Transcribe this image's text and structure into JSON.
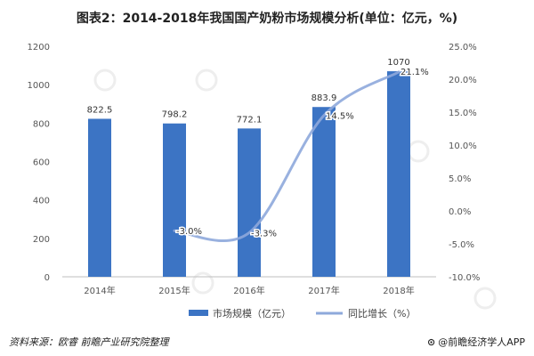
{
  "title": "图表2：2014-2018年我国国产奶粉市场规模分析(单位：亿元，%)",
  "source": "资料来源：欧睿 前瞻产业研究院整理",
  "credit": "@前瞻经济学人APP",
  "chart_data": {
    "type": "bar+line",
    "categories": [
      "2014年",
      "2015年",
      "2016年",
      "2017年",
      "2018年"
    ],
    "series": [
      {
        "name": "市场规模（亿元）",
        "type": "bar",
        "axis": "left",
        "color": "#3c74c4",
        "values": [
          822.5,
          798.2,
          772.1,
          883.9,
          1070
        ],
        "labels": [
          "822.5",
          "798.2",
          "772.1",
          "883.9",
          "1070"
        ]
      },
      {
        "name": "同比增长（%）",
        "type": "line",
        "axis": "right",
        "color": "#8ea9db",
        "values": [
          null,
          -3.0,
          -3.3,
          14.5,
          21.1
        ],
        "labels": [
          "",
          "-3.0%",
          "-3.3%",
          "14.5%",
          "21.1%"
        ]
      }
    ],
    "y_left": {
      "min": 0,
      "max": 1200,
      "step": 200,
      "ticks": [
        "0",
        "200",
        "400",
        "600",
        "800",
        "1000",
        "1200"
      ]
    },
    "y_right": {
      "min": -10,
      "max": 25,
      "step": 5,
      "ticks": [
        "-10.0%",
        "-5.0%",
        "0.0%",
        "5.0%",
        "10.0%",
        "15.0%",
        "20.0%",
        "25.0%"
      ]
    },
    "grid": false,
    "legend_position": "bottom"
  }
}
